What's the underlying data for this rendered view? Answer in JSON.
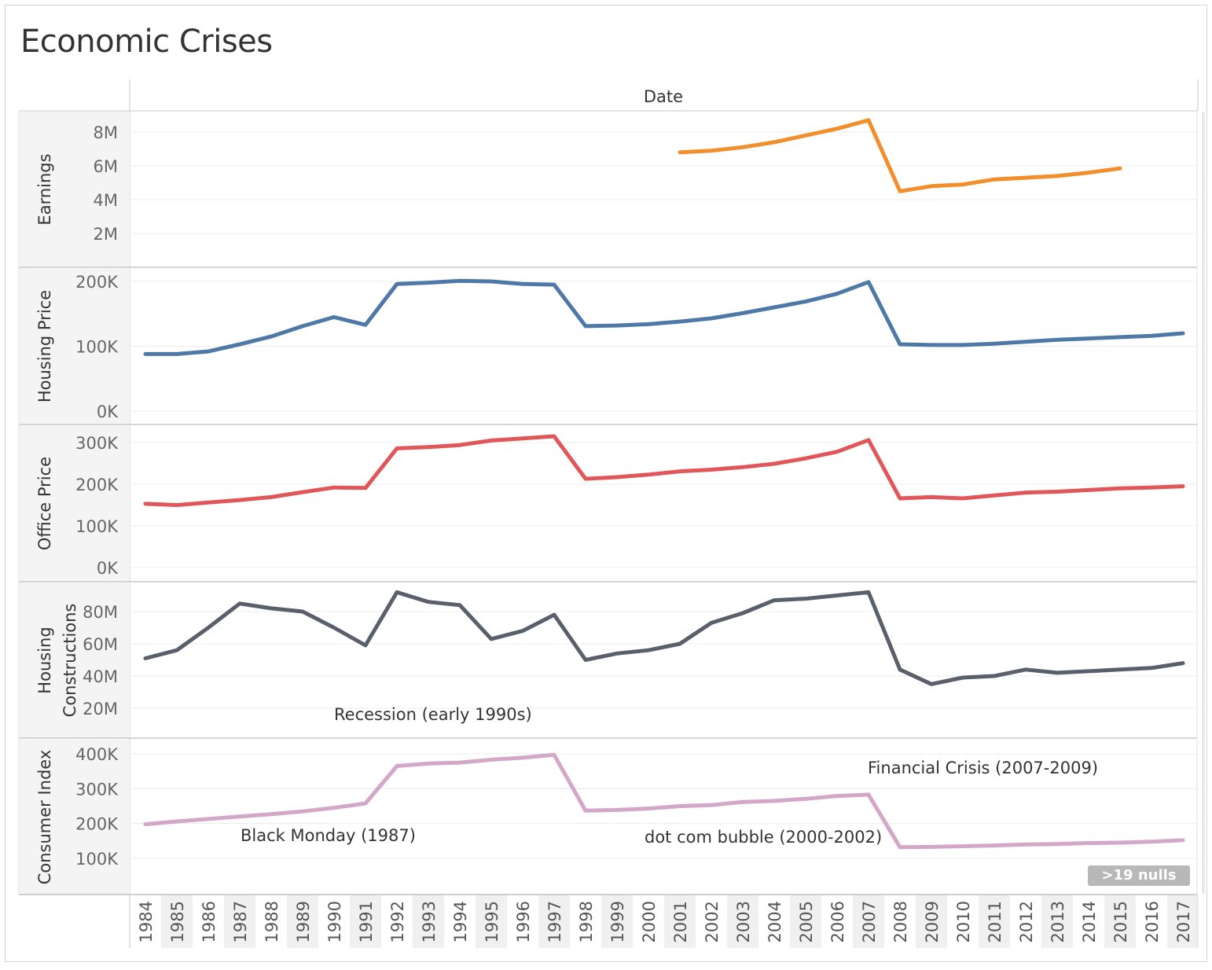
{
  "title": "Economic Crises",
  "null_indicator": ">19 nulls",
  "chart_data": {
    "type": "line",
    "column_header": "Date",
    "x": [
      1984,
      1985,
      1986,
      1987,
      1988,
      1989,
      1990,
      1991,
      1992,
      1993,
      1994,
      1995,
      1996,
      1997,
      1998,
      1999,
      2000,
      2001,
      2002,
      2003,
      2004,
      2005,
      2006,
      2007,
      2008,
      2009,
      2010,
      2011,
      2012,
      2013,
      2014,
      2015,
      2016,
      2017
    ],
    "x_tick_labels": [
      "1984",
      "1985",
      "1986",
      "1987",
      "1988",
      "1989",
      "1990",
      "1991",
      "1992",
      "1993",
      "1994",
      "1995",
      "1996",
      "1997",
      "1998",
      "1999",
      "2000",
      "2001",
      "2002",
      "2003",
      "2004",
      "2005",
      "2006",
      "2007",
      "2008",
      "2009",
      "2010",
      "2011",
      "2012",
      "2013",
      "2014",
      "2015",
      "2016",
      "2017"
    ],
    "grid": true,
    "panes": [
      {
        "row_label": "Earnings",
        "color": "#f28e2b",
        "ylim": [
          0,
          9000000
        ],
        "y_ticks": [
          2000000,
          4000000,
          6000000,
          8000000
        ],
        "y_tick_labels": [
          "2M",
          "4M",
          "6M",
          "8M"
        ],
        "values": [
          null,
          null,
          null,
          null,
          null,
          null,
          null,
          null,
          null,
          null,
          null,
          null,
          null,
          null,
          null,
          null,
          null,
          6800000,
          6900000,
          7100000,
          7400000,
          7800000,
          8200000,
          8700000,
          4500000,
          4800000,
          4900000,
          5200000,
          5300000,
          5400000,
          5600000,
          5850000,
          null,
          null
        ]
      },
      {
        "row_label": "Housing Price",
        "color": "#4e79a7",
        "ylim": [
          0,
          210000
        ],
        "y_ticks": [
          0,
          100000,
          200000
        ],
        "y_tick_labels": [
          "0K",
          "100K",
          "200K"
        ],
        "values": [
          88000,
          88000,
          92000,
          103000,
          115000,
          131000,
          145000,
          133000,
          196000,
          198000,
          201000,
          200000,
          196000,
          195000,
          131000,
          132000,
          134000,
          138000,
          143000,
          151000,
          160000,
          169000,
          181000,
          199000,
          103000,
          102000,
          102000,
          104000,
          107000,
          110000,
          112000,
          114000,
          116000,
          120000
        ]
      },
      {
        "row_label": "Office Price",
        "color": "#e15759",
        "ylim": [
          0,
          330000
        ],
        "y_ticks": [
          0,
          100000,
          200000,
          300000
        ],
        "y_tick_labels": [
          "0K",
          "100K",
          "200K",
          "300K"
        ],
        "values": [
          153000,
          150000,
          156000,
          162000,
          169000,
          181000,
          192000,
          191000,
          286000,
          289000,
          294000,
          305000,
          310000,
          315000,
          213000,
          217000,
          223000,
          231000,
          235000,
          241000,
          249000,
          262000,
          278000,
          306000,
          166000,
          169000,
          166000,
          173000,
          180000,
          182000,
          186000,
          190000,
          192000,
          195000
        ]
      },
      {
        "row_label": "Housing Constructions",
        "color": "#59606b",
        "ylim": [
          10000000,
          98000000
        ],
        "y_ticks": [
          20000000,
          40000000,
          60000000,
          80000000
        ],
        "y_tick_labels": [
          "20M",
          "40M",
          "60M",
          "80M"
        ],
        "values": [
          51000000,
          56000000,
          70000000,
          85000000,
          82000000,
          80000000,
          70000000,
          59000000,
          92000000,
          86000000,
          84000000,
          63000000,
          68000000,
          78000000,
          50000000,
          54000000,
          56000000,
          60000000,
          73000000,
          79000000,
          87000000,
          88000000,
          90000000,
          92000000,
          44000000,
          35000000,
          39000000,
          40000000,
          44000000,
          42000000,
          43000000,
          44000000,
          45000000,
          48000000
        ]
      },
      {
        "row_label": "Consumer Index",
        "color": "#d4a6c8",
        "ylim": [
          50000,
          430000
        ],
        "y_ticks": [
          100000,
          200000,
          300000,
          400000
        ],
        "y_tick_labels": [
          "100K",
          "200K",
          "300K",
          "400K"
        ],
        "values": [
          198000,
          206000,
          213000,
          220000,
          227000,
          235000,
          245000,
          258000,
          365000,
          372000,
          375000,
          383000,
          389000,
          397000,
          237000,
          239000,
          243000,
          250000,
          253000,
          262000,
          265000,
          271000,
          279000,
          283000,
          132000,
          133000,
          135000,
          137000,
          140000,
          141000,
          144000,
          145000,
          148000,
          152000
        ]
      }
    ],
    "annotations": [
      {
        "text": "Recession (early 1990s)",
        "pane": 3
      },
      {
        "text": "Financial Crisis (2007-2009)",
        "pane": 4
      },
      {
        "text": "Black Monday (1987)",
        "pane": 4
      },
      {
        "text": "dot com bubble (2000-2002)",
        "pane": 4
      }
    ]
  }
}
